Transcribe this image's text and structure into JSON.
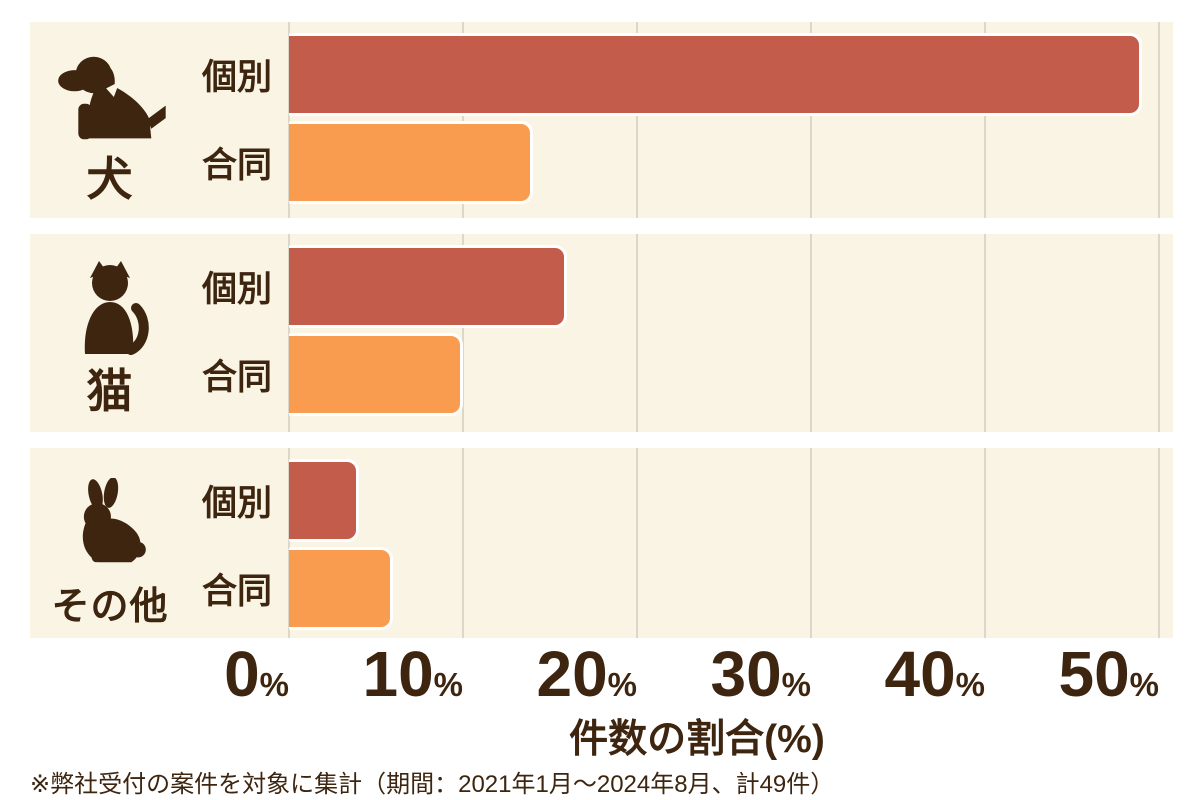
{
  "chart_data": {
    "type": "bar",
    "orientation": "horizontal",
    "title": "",
    "categories": [
      "犬",
      "猫",
      "その他"
    ],
    "series": [
      {
        "name": "個別",
        "values": [
          49,
          16,
          4
        ],
        "color": "#C45C4B"
      },
      {
        "name": "合同",
        "values": [
          14,
          10,
          6
        ],
        "color": "#F99C50"
      }
    ],
    "x_ticks": [
      0,
      10,
      20,
      30,
      40,
      50
    ],
    "xlim": [
      0,
      50
    ],
    "xlabel": "件数の割合(%)",
    "grid": true,
    "legend_position": "row-labels-inline",
    "note": "※弊社受付の案件を対象に集計（期間：2021年1月～2024年8月、計49件）"
  },
  "panels": [
    {
      "animal": "犬",
      "icon": "dog-icon",
      "rows": [
        {
          "label": "個別",
          "value": 49
        },
        {
          "label": "合同",
          "value": 14
        }
      ]
    },
    {
      "animal": "猫",
      "icon": "cat-icon",
      "rows": [
        {
          "label": "個別",
          "value": 16
        },
        {
          "label": "合同",
          "value": 10
        }
      ]
    },
    {
      "animal": "その他",
      "icon": "rabbit-icon",
      "rows": [
        {
          "label": "個別",
          "value": 4
        },
        {
          "label": "合同",
          "value": 6
        }
      ]
    }
  ],
  "axis": {
    "title": "件数の割合(%)",
    "tick_labels": [
      "0",
      "10",
      "20",
      "30",
      "40",
      "50"
    ],
    "percent_symbol": "%"
  },
  "footnote": "※弊社受付の案件を対象に集計（期間：2021年1月～2024年8月、計49件）",
  "colors": {
    "individual": "#C45C4B",
    "joint": "#F99C50",
    "panel_background": "#FAF4E4",
    "text": "#3D250F",
    "gridline": "#DBD7C9",
    "page_background": "#FFFFFF"
  }
}
